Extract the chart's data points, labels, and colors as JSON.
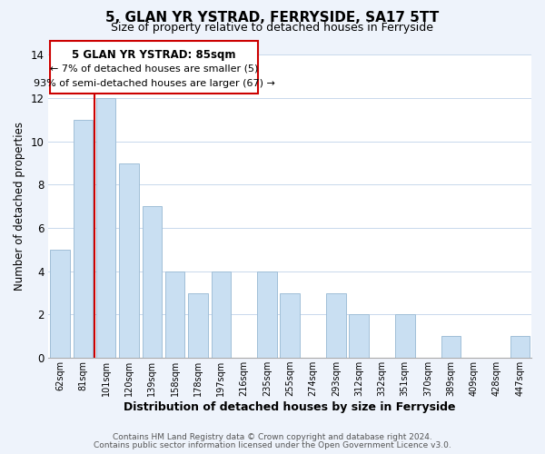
{
  "title": "5, GLAN YR YSTRAD, FERRYSIDE, SA17 5TT",
  "subtitle": "Size of property relative to detached houses in Ferryside",
  "xlabel": "Distribution of detached houses by size in Ferryside",
  "ylabel": "Number of detached properties",
  "bar_labels": [
    "62sqm",
    "81sqm",
    "101sqm",
    "120sqm",
    "139sqm",
    "158sqm",
    "178sqm",
    "197sqm",
    "216sqm",
    "235sqm",
    "255sqm",
    "274sqm",
    "293sqm",
    "312sqm",
    "332sqm",
    "351sqm",
    "370sqm",
    "389sqm",
    "409sqm",
    "428sqm",
    "447sqm"
  ],
  "bar_values": [
    5,
    11,
    12,
    9,
    7,
    4,
    3,
    4,
    0,
    4,
    3,
    0,
    3,
    2,
    0,
    2,
    0,
    1,
    0,
    0,
    1
  ],
  "bar_color": "#c9dff2",
  "bar_edge_color": "#a0bfd8",
  "marker_color": "#cc0000",
  "annotation_title": "5 GLAN YR YSTRAD: 85sqm",
  "annotation_line1": "← 7% of detached houses are smaller (5)",
  "annotation_line2": "93% of semi-detached houses are larger (67) →",
  "annotation_box_edge": "#cc0000",
  "ylim": [
    0,
    14
  ],
  "yticks": [
    0,
    2,
    4,
    6,
    8,
    10,
    12,
    14
  ],
  "footer_line1": "Contains HM Land Registry data © Crown copyright and database right 2024.",
  "footer_line2": "Contains public sector information licensed under the Open Government Licence v3.0.",
  "bg_color": "#eef3fb",
  "plot_bg_color": "#ffffff"
}
